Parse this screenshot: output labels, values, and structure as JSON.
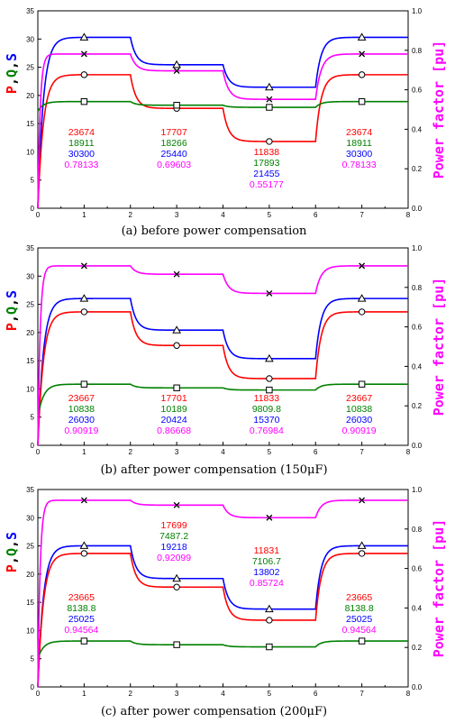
{
  "colors": {
    "P": "#ff0000",
    "Q": "#008000",
    "S": "#0000ff",
    "PF": "#ff00ff"
  },
  "axis_labels": {
    "left": [
      {
        "t": "P",
        "c": "#ff0000"
      },
      {
        "t": ",",
        "c": "#000000"
      },
      {
        "t": "Q",
        "c": "#008000"
      },
      {
        "t": ",",
        "c": "#000000"
      },
      {
        "t": "S",
        "c": "#0000ff"
      }
    ],
    "right": "Power factor [pu]"
  },
  "chart_data": [
    {
      "type": "line",
      "caption": "(a) before power compensation",
      "xlim": [
        0,
        8
      ],
      "ylim_left": [
        0,
        35
      ],
      "ylim_right": [
        0,
        1.0
      ],
      "x_ticks": [
        0,
        1,
        2,
        3,
        4,
        5,
        6,
        7,
        8
      ],
      "y_left_ticks": [
        0,
        5,
        10,
        15,
        20,
        25,
        30,
        35
      ],
      "y_right_ticks": [
        "0.0",
        "0.2",
        "0.4",
        "0.6",
        "0.8",
        "1.0"
      ],
      "series": [
        {
          "name": "S",
          "axis": "left",
          "marker": "triangle",
          "x": [
            1,
            3,
            5,
            7
          ],
          "y": [
            30.3,
            25.44,
            21.455,
            30.3
          ]
        },
        {
          "name": "P",
          "axis": "left",
          "marker": "circle",
          "x": [
            1,
            3,
            5,
            7
          ],
          "y": [
            23.674,
            17.707,
            11.838,
            23.674
          ]
        },
        {
          "name": "Q",
          "axis": "left",
          "marker": "square",
          "x": [
            1,
            3,
            5,
            7
          ],
          "y": [
            18.911,
            18.266,
            17.893,
            18.911
          ]
        },
        {
          "name": "PF",
          "axis": "right",
          "marker": "x",
          "x": [
            1,
            3,
            5,
            7
          ],
          "y": [
            0.78133,
            0.69603,
            0.55177,
            0.78133
          ]
        }
      ],
      "annotations": [
        {
          "x": 1,
          "lines": [
            "23674",
            "18911",
            "30300",
            "0.78133"
          ]
        },
        {
          "x": 3,
          "lines": [
            "17707",
            "18266",
            "25440",
            "0.69603"
          ]
        },
        {
          "x": 5,
          "lines": [
            "11838",
            "17893",
            "21455",
            "0.55177"
          ]
        },
        {
          "x": 7,
          "lines": [
            "23674",
            "18911",
            "30300",
            "0.78133"
          ]
        }
      ]
    },
    {
      "type": "line",
      "caption": "(b) after power compensation (150μF)",
      "xlim": [
        0,
        8
      ],
      "ylim_left": [
        0,
        35
      ],
      "ylim_right": [
        0,
        1.0
      ],
      "x_ticks": [
        0,
        1,
        2,
        3,
        4,
        5,
        6,
        7,
        8
      ],
      "y_left_ticks": [
        0,
        5,
        10,
        15,
        20,
        25,
        30,
        35
      ],
      "y_right_ticks": [
        "0.0",
        "0.2",
        "0.4",
        "0.6",
        "0.8",
        "1.0"
      ],
      "series": [
        {
          "name": "S",
          "axis": "left",
          "marker": "triangle",
          "x": [
            1,
            3,
            5,
            7
          ],
          "y": [
            26.03,
            20.424,
            15.37,
            26.03
          ]
        },
        {
          "name": "P",
          "axis": "left",
          "marker": "circle",
          "x": [
            1,
            3,
            5,
            7
          ],
          "y": [
            23.667,
            17.701,
            11.833,
            23.667
          ]
        },
        {
          "name": "Q",
          "axis": "left",
          "marker": "square",
          "x": [
            1,
            3,
            5,
            7
          ],
          "y": [
            10.838,
            10.189,
            9.8098,
            10.838
          ]
        },
        {
          "name": "PF",
          "axis": "right",
          "marker": "x",
          "x": [
            1,
            3,
            5,
            7
          ],
          "y": [
            0.90919,
            0.86668,
            0.76984,
            0.90919
          ]
        }
      ],
      "annotations": [
        {
          "x": 1,
          "lines": [
            "23667",
            "10838",
            "26030",
            "0.90919"
          ]
        },
        {
          "x": 3,
          "lines": [
            "17701",
            "10189",
            "20424",
            "0.86668"
          ]
        },
        {
          "x": 5,
          "lines": [
            "11833",
            "9809.8",
            "15370",
            "0.76984"
          ]
        },
        {
          "x": 7,
          "lines": [
            "23667",
            "10838",
            "26030",
            "0.90919"
          ]
        }
      ]
    },
    {
      "type": "line",
      "caption": "(c) after power compensation (200μF)",
      "xlim": [
        0,
        8
      ],
      "ylim_left": [
        0,
        35
      ],
      "ylim_right": [
        0,
        1.0
      ],
      "x_ticks": [
        0,
        1,
        2,
        3,
        4,
        5,
        6,
        7,
        8
      ],
      "y_left_ticks": [
        0,
        5,
        10,
        15,
        20,
        25,
        30,
        35
      ],
      "y_right_ticks": [
        "0.0",
        "0.2",
        "0.4",
        "0.6",
        "0.8",
        "1.0"
      ],
      "series": [
        {
          "name": "S",
          "axis": "left",
          "marker": "triangle",
          "x": [
            1,
            3,
            5,
            7
          ],
          "y": [
            25.025,
            19.218,
            13.802,
            25.025
          ]
        },
        {
          "name": "P",
          "axis": "left",
          "marker": "circle",
          "x": [
            1,
            3,
            5,
            7
          ],
          "y": [
            23.665,
            17.699,
            11.831,
            23.665
          ]
        },
        {
          "name": "Q",
          "axis": "left",
          "marker": "square",
          "x": [
            1,
            3,
            5,
            7
          ],
          "y": [
            8.1388,
            7.4872,
            7.1067,
            8.1388
          ]
        },
        {
          "name": "PF",
          "axis": "right",
          "marker": "x",
          "x": [
            1,
            3,
            5,
            7
          ],
          "y": [
            0.94564,
            0.92099,
            0.85724,
            0.94564
          ]
        }
      ],
      "annotations": [
        {
          "x": 1,
          "lines": [
            "23665",
            "8138.8",
            "25025",
            "0.94564"
          ]
        },
        {
          "x": 3,
          "lines": [
            "17699",
            "7487.2",
            "19218",
            "0.92099"
          ]
        },
        {
          "x": 5,
          "lines": [
            "11831",
            "7106.7",
            "13802",
            "0.85724"
          ]
        },
        {
          "x": 7,
          "lines": [
            "23665",
            "8138.8",
            "25025",
            "0.94564"
          ]
        }
      ]
    }
  ]
}
